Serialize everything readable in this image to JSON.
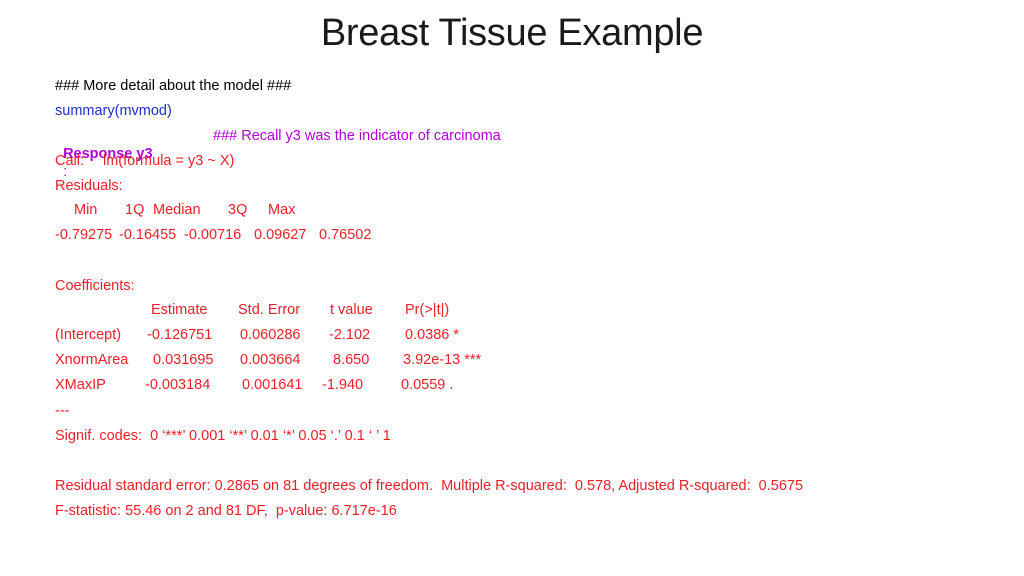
{
  "title": "Breast Tissue Example",
  "comment_line": "### More detail about the model ###",
  "summary_call": "summary(mvmod)",
  "response": {
    "label": "Response y3",
    "colon": ":",
    "comment": "### Recall y3 was the indicator of carcinoma"
  },
  "call": {
    "label": "Call:",
    "formula": "lm(formula = y3 ~ X)"
  },
  "residuals": {
    "label": "Residuals:",
    "headers": [
      "Min",
      "1Q",
      "Median",
      "3Q",
      "Max"
    ],
    "values": [
      "-0.79275",
      "-0.16455",
      "-0.00716",
      "0.09627",
      "0.76502"
    ]
  },
  "coefficients": {
    "label": "Coefficients:",
    "headers": [
      "Estimate",
      "Std. Error",
      "t value",
      "Pr(>|t|)"
    ],
    "rows": [
      {
        "name": "(Intercept)",
        "estimate": "-0.126751",
        "std_error": "0.060286",
        "t_value": "-2.102",
        "p": "0.0386 *"
      },
      {
        "name": "XnormArea",
        "estimate": "0.031695",
        "std_error": "0.003664",
        "t_value": "8.650",
        "p": "3.92e-13 ***"
      },
      {
        "name": "XMaxIP",
        "estimate": "-0.003184",
        "std_error": "0.001641",
        "t_value": "-1.940",
        "p": "0.0559 ."
      }
    ]
  },
  "separator": "---",
  "signif_codes": "Signif. codes:  0 ‘***’ 0.001 ‘**’ 0.01 ‘*’ 0.05 ‘.’ 0.1 ‘ ’ 1",
  "residual_se": "Residual standard error: 0.2865 on 81 degrees of freedom.  Multiple R-squared:  0.578, Adjusted R-squared:  0.5675",
  "f_statistic": "F-statistic: 55.46 on 2 and 81 DF,  p-value: 6.717e-16"
}
